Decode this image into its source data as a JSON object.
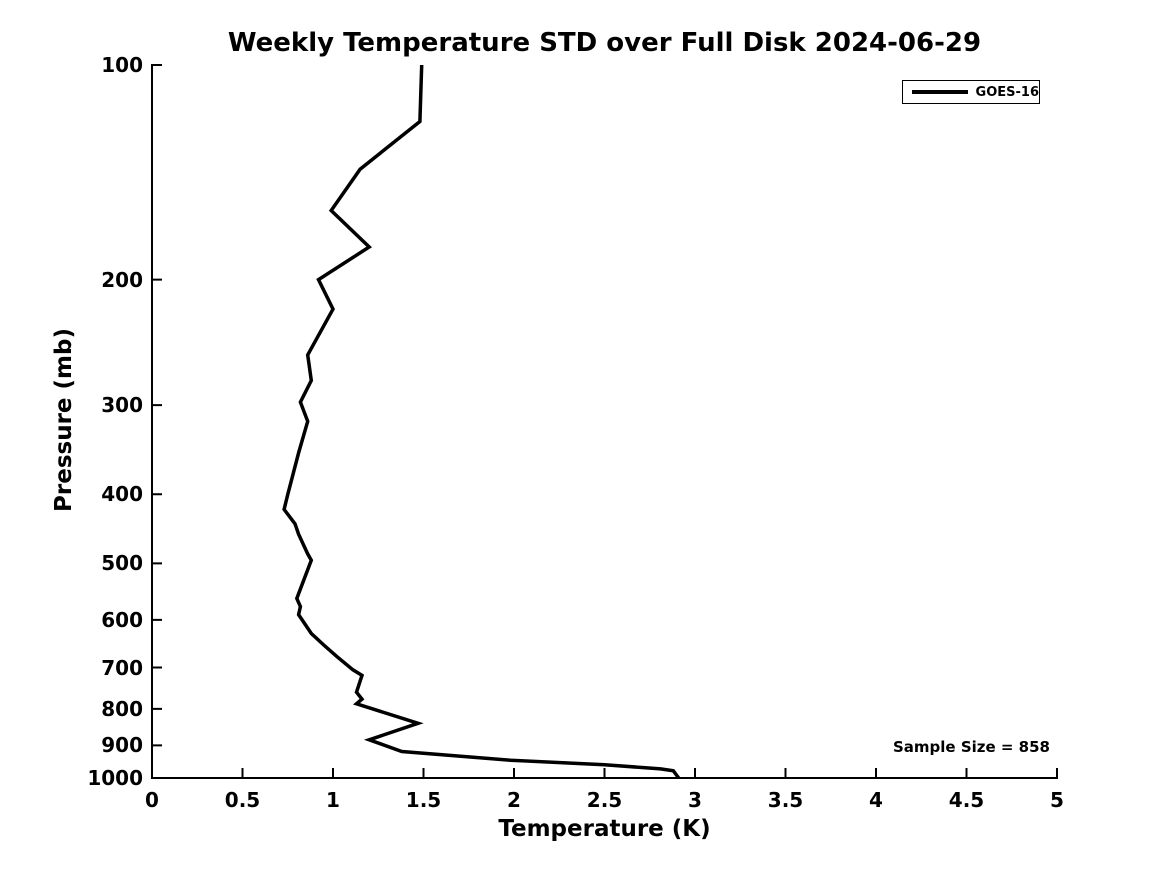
{
  "figure": {
    "background": "#ffffff",
    "foreground": "#000000"
  },
  "chart_data": {
    "type": "line",
    "title": "Weekly Temperature STD over Full Disk 2024-06-29",
    "xlabel": "Temperature (K)",
    "ylabel": "Pressure (mb)",
    "xlim": [
      0,
      5
    ],
    "ylim": [
      100,
      1000
    ],
    "x_scale": "linear",
    "y_scale": "log",
    "y_inverted": true,
    "grid": false,
    "x_tick_values": [
      0,
      0.5,
      1,
      1.5,
      2,
      2.5,
      3,
      3.5,
      4,
      4.5,
      5
    ],
    "x_tick_labels": [
      "0",
      "0.5",
      "1",
      "1.5",
      "2",
      "2.5",
      "3",
      "3.5",
      "4",
      "4.5",
      "5"
    ],
    "y_tick_values": [
      100,
      200,
      300,
      400,
      500,
      600,
      700,
      800,
      900,
      1000
    ],
    "y_tick_labels": [
      "100",
      "200",
      "300",
      "400",
      "500",
      "600",
      "700",
      "800",
      "900",
      "1000"
    ],
    "legend": {
      "position": "upper-right",
      "entries": [
        {
          "label": "GOES-16",
          "color": "#000000"
        }
      ]
    },
    "annotation": {
      "text": "Sample Size = 858"
    },
    "series": [
      {
        "name": "GOES-16",
        "color": "#000000",
        "line_width": 3.5,
        "points_temperature_pressure": [
          [
            1.49,
            100
          ],
          [
            1.48,
            120
          ],
          [
            1.15,
            140
          ],
          [
            0.99,
            160
          ],
          [
            1.2,
            180
          ],
          [
            0.92,
            200
          ],
          [
            1.0,
            220
          ],
          [
            0.86,
            255
          ],
          [
            0.88,
            277
          ],
          [
            0.82,
            297
          ],
          [
            0.86,
            316
          ],
          [
            0.81,
            350
          ],
          [
            0.75,
            400
          ],
          [
            0.73,
            420
          ],
          [
            0.79,
            440
          ],
          [
            0.81,
            455
          ],
          [
            0.86,
            485
          ],
          [
            0.88,
            495
          ],
          [
            0.8,
            560
          ],
          [
            0.82,
            575
          ],
          [
            0.81,
            590
          ],
          [
            0.88,
            627
          ],
          [
            0.95,
            651
          ],
          [
            1.02,
            675
          ],
          [
            1.11,
            705
          ],
          [
            1.16,
            718
          ],
          [
            1.13,
            758
          ],
          [
            1.16,
            775
          ],
          [
            1.13,
            787
          ],
          [
            1.47,
            838
          ],
          [
            1.2,
            884
          ],
          [
            1.38,
            918
          ],
          [
            1.98,
            944
          ],
          [
            2.5,
            958
          ],
          [
            2.81,
            971
          ],
          [
            2.88,
            977
          ],
          [
            2.91,
            1000
          ]
        ]
      }
    ]
  }
}
